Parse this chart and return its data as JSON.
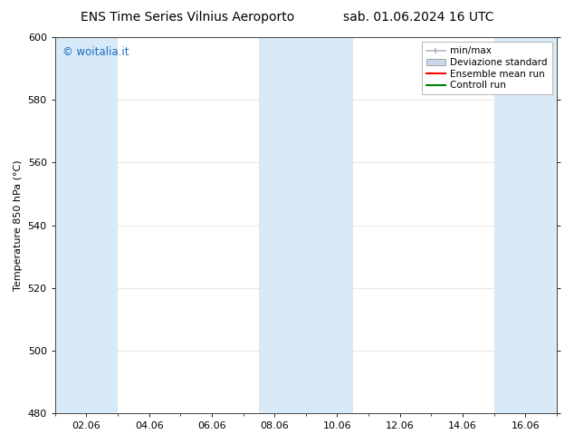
{
  "title_left": "ENS Time Series Vilnius Aeroporto",
  "title_right": "sab. 01.06.2024 16 UTC",
  "ylabel": "Temperature 850 hPa (°C)",
  "ylim": [
    480,
    600
  ],
  "yticks": [
    480,
    500,
    520,
    540,
    560,
    580,
    600
  ],
  "xtick_labels": [
    "02.06",
    "04.06",
    "06.06",
    "08.06",
    "10.06",
    "12.06",
    "14.06",
    "16.06"
  ],
  "xtick_positions": [
    2,
    4,
    6,
    8,
    10,
    12,
    14,
    16
  ],
  "xlim": [
    1,
    17
  ],
  "watermark": "© woitalia.it",
  "watermark_color": "#1a6bbf",
  "bg_color": "#ffffff",
  "plot_bg_color": "#ffffff",
  "shaded_band_color": "#d8eaf8",
  "shaded_columns": [
    {
      "xmin": 1.0,
      "xmax": 3.0
    },
    {
      "xmin": 7.5,
      "xmax": 9.5
    },
    {
      "xmin": 9.5,
      "xmax": 10.5
    },
    {
      "xmin": 15.0,
      "xmax": 17.0
    }
  ],
  "legend_entries": [
    {
      "label": "min/max",
      "color": "#b0b8c0",
      "style": "errorbar"
    },
    {
      "label": "Deviazione standard",
      "color": "#c8d8e8",
      "style": "box"
    },
    {
      "label": "Ensemble mean run",
      "color": "#ff0000",
      "style": "line"
    },
    {
      "label": "Controll run",
      "color": "#008000",
      "style": "line"
    }
  ],
  "title_fontsize": 10,
  "tick_fontsize": 8,
  "ylabel_fontsize": 8,
  "legend_fontsize": 7.5
}
